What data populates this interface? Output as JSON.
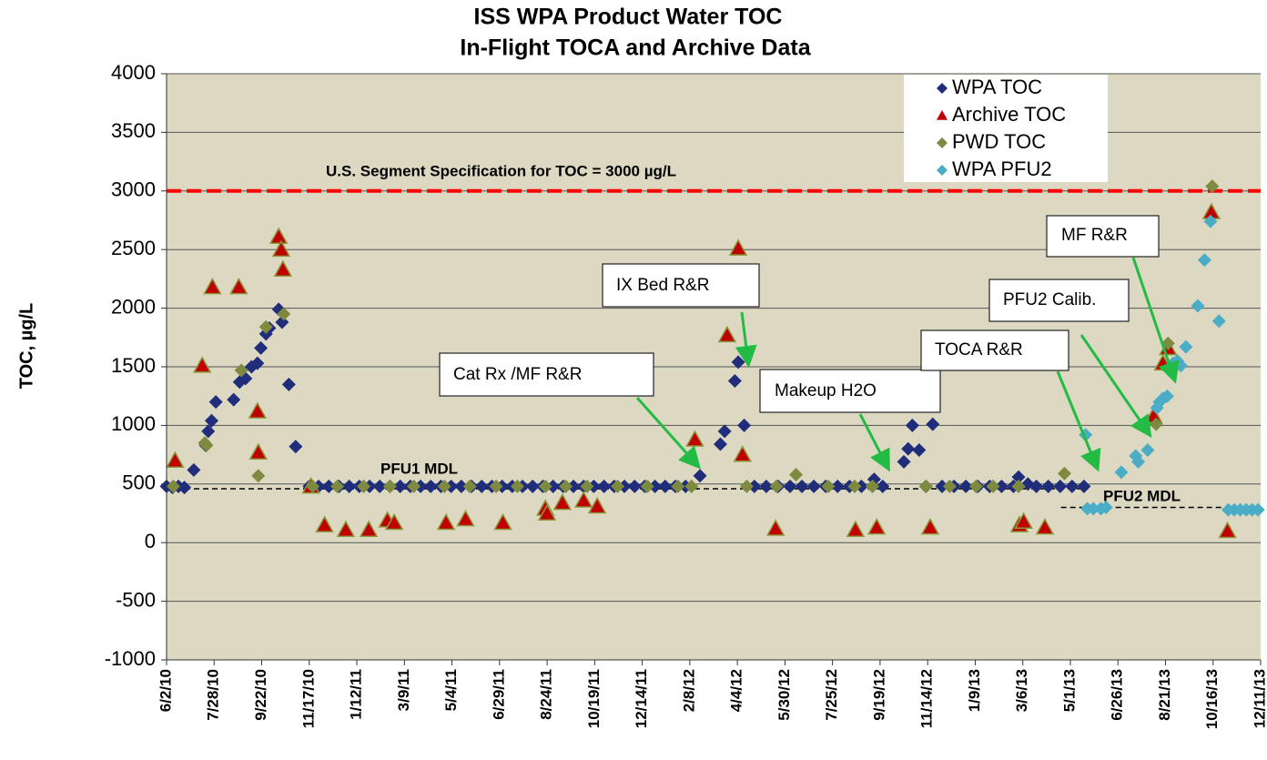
{
  "chart_data": {
    "type": "scatter",
    "title": "ISS WPA Product Water TOC",
    "subtitle": "In-Flight TOCA and Archive Data",
    "y_label": "TOC, µg/L",
    "xlim": [
      "6/2/10",
      "12/11/13"
    ],
    "xticks": [
      "6/2/10",
      "7/28/10",
      "9/22/10",
      "11/17/10",
      "1/12/11",
      "3/9/11",
      "5/4/11",
      "6/29/11",
      "8/24/11",
      "10/19/11",
      "12/14/11",
      "2/8/12",
      "4/4/12",
      "5/30/12",
      "7/25/12",
      "9/19/12",
      "11/14/12",
      "1/9/13",
      "3/6/13",
      "5/1/13",
      "6/26/13",
      "8/21/13",
      "10/16/13",
      "12/11/13"
    ],
    "ylim": [
      -1000,
      4000
    ],
    "yticks": [
      -1000,
      -500,
      0,
      500,
      1000,
      1500,
      2000,
      2500,
      3000,
      3500,
      4000
    ],
    "grid": true,
    "legend": "upper right",
    "series": [
      {
        "name": "WPA TOC",
        "color": "#1f2d7a",
        "marker": "diamond",
        "x": [
          "6/2/10",
          "6/9/10",
          "6/16/10",
          "6/23/10",
          "7/4/10",
          "7/18/10",
          "7/21/10",
          "7/25/10",
          "7/30/10",
          "8/20/10",
          "8/27/10",
          "9/3/10",
          "9/10/10",
          "9/17/10",
          "9/21/10",
          "9/27/10",
          "10/1/10",
          "10/12/10",
          "10/16/10",
          "10/24/10",
          "11/1/10",
          "11/17/10",
          "11/28/10",
          "12/10/10",
          "12/22/10",
          "1/3/11",
          "1/15/11",
          "1/27/11",
          "2/8/11",
          "2/20/11",
          "3/4/11",
          "3/16/11",
          "3/28/11",
          "4/9/11",
          "4/21/11",
          "5/3/11",
          "5/15/11",
          "5/27/11",
          "6/8/11",
          "6/20/11",
          "7/2/11",
          "7/14/11",
          "7/26/11",
          "8/7/11",
          "8/19/11",
          "8/31/11",
          "9/12/11",
          "9/24/11",
          "10/6/11",
          "10/18/11",
          "10/30/11",
          "11/11/11",
          "11/23/11",
          "12/5/11",
          "12/17/11",
          "12/29/11",
          "1/10/12",
          "1/22/12",
          "2/3/12",
          "2/20/12",
          "3/15/12",
          "3/20/12",
          "4/1/12",
          "4/5/12",
          "4/12/12",
          "4/24/12",
          "5/8/12",
          "5/22/12",
          "6/5/12",
          "6/19/12",
          "7/3/12",
          "7/17/12",
          "7/31/12",
          "8/14/12",
          "8/28/12",
          "9/12/12",
          "9/22/12",
          "10/17/12",
          "10/22/12",
          "10/27/12",
          "11/4/12",
          "11/12/12",
          "11/20/12",
          "12/1/12",
          "12/15/12",
          "12/29/12",
          "1/12/13",
          "1/26/13",
          "2/9/13",
          "2/23/13",
          "3/1/13",
          "3/12/13",
          "3/22/13",
          "4/5/13",
          "4/19/13",
          "5/3/13",
          "5/17/13"
        ],
        "values": [
          480,
          470,
          480,
          470,
          620,
          830,
          950,
          1040,
          1200,
          1220,
          1370,
          1400,
          1500,
          1530,
          1660,
          1780,
          1830,
          1990,
          1880,
          1350,
          820,
          480,
          480,
          480,
          480,
          480,
          480,
          480,
          480,
          480,
          480,
          480,
          480,
          480,
          480,
          480,
          480,
          480,
          480,
          480,
          480,
          480,
          480,
          480,
          480,
          480,
          480,
          480,
          480,
          480,
          480,
          480,
          480,
          480,
          480,
          480,
          480,
          480,
          480,
          570,
          840,
          950,
          1380,
          1540,
          1000,
          480,
          480,
          480,
          480,
          480,
          480,
          480,
          480,
          480,
          480,
          540,
          480,
          690,
          800,
          1000,
          790,
          480,
          1010,
          480,
          480,
          480,
          480,
          480,
          480,
          480,
          560,
          500,
          480,
          480,
          480,
          480,
          480
        ]
      },
      {
        "name": "Archive TOC",
        "color": "#c00000",
        "marker": "triangle",
        "x": [
          "6/12/10",
          "7/14/10",
          "7/26/10",
          "8/26/10",
          "9/17/10",
          "9/18/10",
          "10/12/10",
          "10/15/10",
          "10/17/10",
          "11/19/10",
          "12/5/10",
          "12/30/10",
          "1/26/11",
          "2/17/11",
          "2/25/11",
          "4/27/11",
          "5/20/11",
          "7/3/11",
          "8/22/11",
          "8/24/11",
          "9/11/11",
          "10/6/11",
          "10/22/11",
          "2/14/12",
          "3/23/12",
          "4/5/12",
          "4/10/12",
          "5/19/12",
          "8/21/12",
          "9/15/12",
          "11/17/12",
          "3/2/13",
          "3/7/13",
          "4/1/13",
          "8/7/13",
          "8/18/13",
          "8/24/13",
          "10/14/13",
          "11/2/13"
        ],
        "values": [
          700,
          1510,
          2180,
          2180,
          1120,
          770,
          2610,
          2500,
          2330,
          480,
          150,
          110,
          110,
          190,
          170,
          170,
          200,
          170,
          290,
          250,
          340,
          360,
          310,
          880,
          1770,
          2510,
          750,
          120,
          110,
          130,
          130,
          150,
          180,
          130,
          1080,
          1530,
          1660,
          2820,
          100
        ]
      },
      {
        "name": "PWD TOC",
        "color": "#7e8a3f",
        "marker": "diamond",
        "x": [
          "6/10/10",
          "7/17/10",
          "7/19/10",
          "8/29/10",
          "9/18/10",
          "9/27/10",
          "10/18/10",
          "11/21/10",
          "12/20/10",
          "1/20/11",
          "2/20/11",
          "3/20/11",
          "4/25/11",
          "5/25/11",
          "6/25/11",
          "7/20/11",
          "8/22/11",
          "9/15/11",
          "10/10/11",
          "11/15/11",
          "12/20/11",
          "1/25/12",
          "2/10/12",
          "4/15/12",
          "5/20/12",
          "6/12/12",
          "7/20/12",
          "8/20/12",
          "9/10/12",
          "11/12/12",
          "12/10/12",
          "1/10/13",
          "1/30/13",
          "3/1/13",
          "4/24/13",
          "8/10/13",
          "8/24/13",
          "10/15/13"
        ],
        "values": [
          480,
          850,
          830,
          1470,
          570,
          1840,
          1950,
          480,
          480,
          480,
          480,
          480,
          480,
          480,
          480,
          480,
          480,
          480,
          480,
          480,
          480,
          480,
          480,
          480,
          480,
          580,
          480,
          480,
          480,
          480,
          480,
          480,
          480,
          480,
          590,
          1010,
          1700,
          3040
        ]
      },
      {
        "name": "WPA PFU2",
        "color": "#4bacc6",
        "marker": "diamond",
        "x": [
          "5/19/13",
          "5/21/13",
          "5/28/13",
          "6/6/13",
          "6/12/13",
          "6/30/13",
          "7/17/13",
          "7/20/13",
          "7/31/13",
          "8/11/13",
          "8/14/13",
          "8/18/13",
          "8/23/13",
          "8/30/13",
          "9/4/13",
          "9/8/13",
          "9/14/13",
          "9/28/13",
          "10/6/13",
          "10/13/13",
          "10/23/13",
          "11/3/13",
          "11/10/13",
          "11/17/13",
          "11/24/13",
          "12/1/13",
          "12/8/13"
        ],
        "values": [
          920,
          290,
          290,
          290,
          300,
          600,
          740,
          690,
          790,
          1150,
          1200,
          1230,
          1250,
          1530,
          1550,
          1510,
          1670,
          2020,
          2410,
          2740,
          1890,
          280,
          280,
          280,
          280,
          280,
          280
        ]
      }
    ],
    "reference_lines": [
      {
        "value": 3000,
        "label": "U.S. Segment Specification for TOC = 3000 µg/L",
        "color": "#ff0000",
        "from": "6/2/10",
        "to": "12/11/13"
      },
      {
        "value": 460,
        "label": "PFU1 MDL",
        "color": "#000000",
        "from": "6/2/10",
        "to": "5/22/13"
      },
      {
        "value": 300,
        "label": "PFU2 MDL",
        "color": "#000000",
        "from": "4/20/13",
        "to": "12/11/13"
      }
    ],
    "annotations": [
      "Cat Rx /MF R&R",
      "IX Bed R&R",
      "Makeup H2O",
      "TOCA R&R",
      "PFU2 Calib.",
      "MF R&R"
    ]
  }
}
